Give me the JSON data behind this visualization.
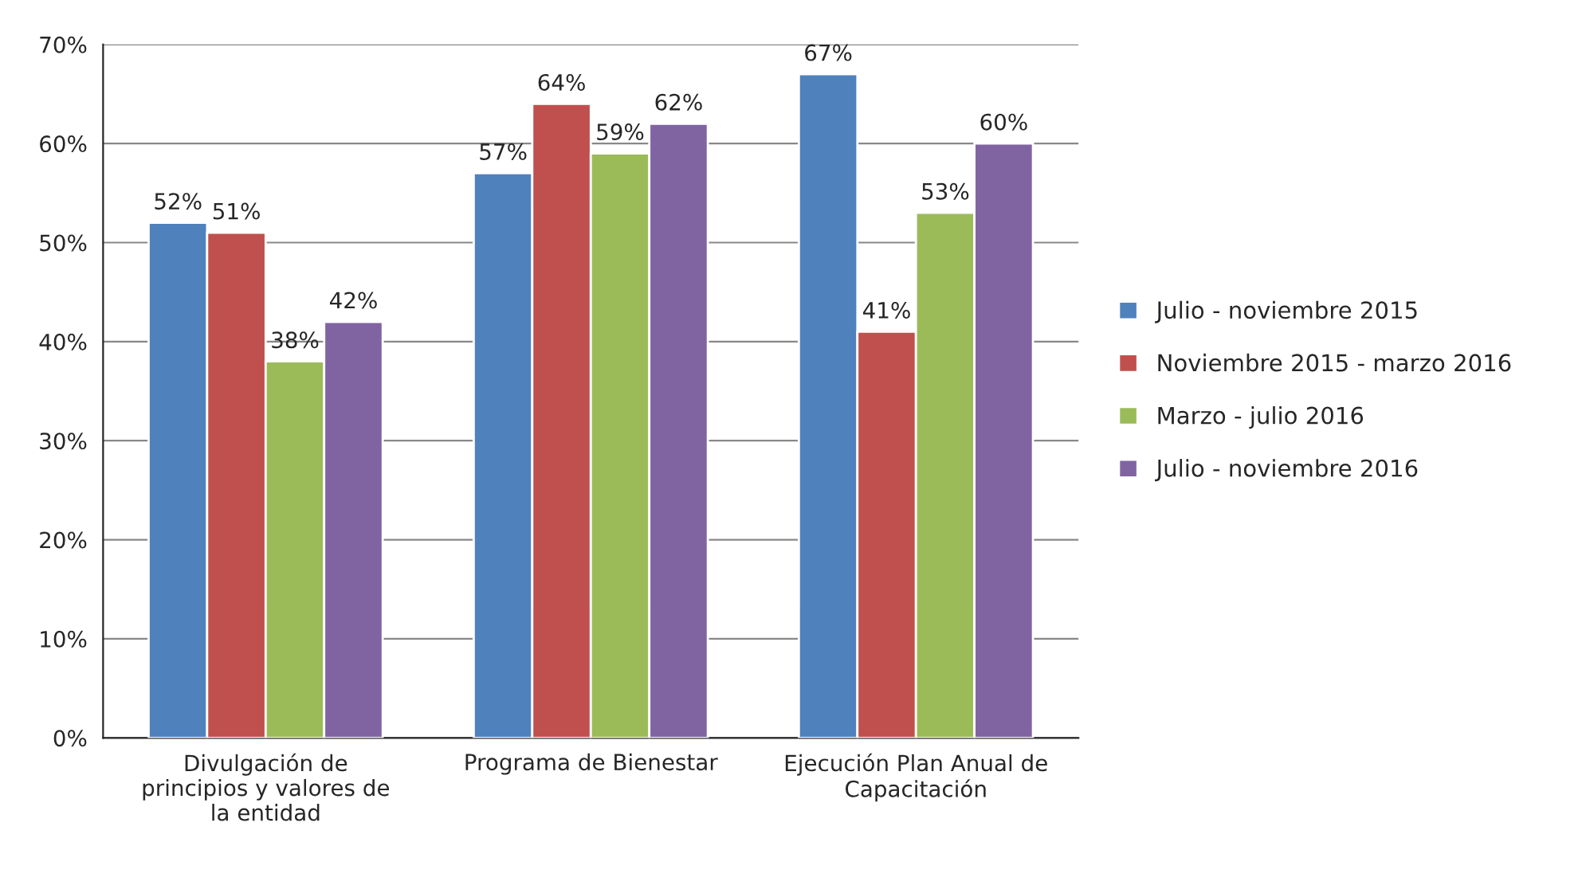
{
  "chart_data": {
    "type": "bar",
    "categories": [
      "Divulgación de principios y valores de la entidad",
      "Programa de Bienestar",
      "Ejecución Plan Anual de Capacitación"
    ],
    "series": [
      {
        "name": "Julio - noviembre 2015",
        "color": "#4f81bd",
        "values": [
          52,
          57,
          67
        ],
        "value_labels": [
          "52%",
          "57%",
          "67%"
        ]
      },
      {
        "name": "Noviembre 2015 - marzo 2016",
        "color": "#c0504d",
        "values": [
          51,
          64,
          41
        ],
        "value_labels": [
          "51%",
          "64%",
          "41%"
        ]
      },
      {
        "name": "Marzo - julio 2016",
        "color": "#9bbb59",
        "values": [
          38,
          59,
          53
        ],
        "value_labels": [
          "38%",
          "59%",
          "53%"
        ]
      },
      {
        "name": "Julio - noviembre 2016",
        "color": "#8064a2",
        "values": [
          42,
          62,
          60
        ],
        "value_labels": [
          "42%",
          "62%",
          "60%"
        ]
      }
    ],
    "ylim": [
      0,
      70
    ],
    "yticks": [
      {
        "value": 0,
        "label": "0%"
      },
      {
        "value": 10,
        "label": "10%"
      },
      {
        "value": 20,
        "label": "20%"
      },
      {
        "value": 30,
        "label": "30%"
      },
      {
        "value": 40,
        "label": "40%"
      },
      {
        "value": 50,
        "label": "50%"
      },
      {
        "value": 60,
        "label": "60%"
      },
      {
        "value": 70,
        "label": "70%"
      }
    ],
    "grid": "y",
    "legend": "right"
  }
}
